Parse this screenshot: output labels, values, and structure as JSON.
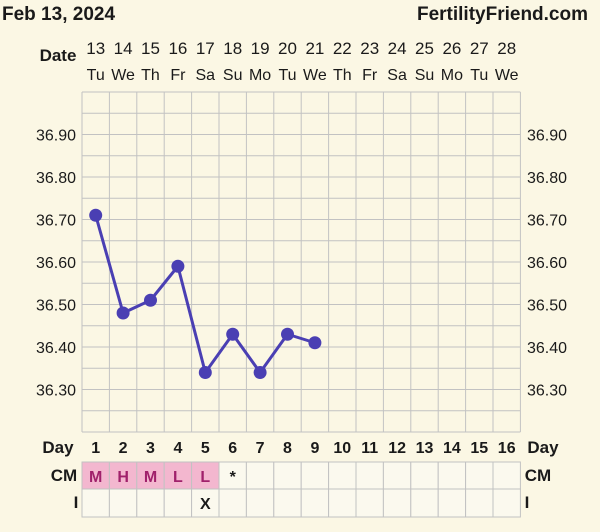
{
  "header": {
    "date": "Feb 13, 2024",
    "brand": "FertilityFriend.com"
  },
  "row_labels": {
    "date": "Date",
    "day": "Day",
    "cm": "CM",
    "intercourse": "I"
  },
  "colors": {
    "background": "#fbf7e4",
    "grid": "#c2c2c2",
    "line": "#4a3fb3",
    "cm_fill": "#f3b7cf",
    "cm_text": "#a0216b"
  },
  "chart_data": {
    "type": "line",
    "dates": [
      "13",
      "14",
      "15",
      "16",
      "17",
      "18",
      "19",
      "20",
      "21",
      "22",
      "23",
      "24",
      "25",
      "26",
      "27",
      "28"
    ],
    "weekdays": [
      "Tu",
      "We",
      "Th",
      "Fr",
      "Sa",
      "Su",
      "Mo",
      "Tu",
      "We",
      "Th",
      "Fr",
      "Sa",
      "Su",
      "Mo",
      "Tu",
      "We"
    ],
    "days": [
      "1",
      "2",
      "3",
      "4",
      "5",
      "6",
      "7",
      "8",
      "9",
      "10",
      "11",
      "12",
      "13",
      "14",
      "15",
      "16"
    ],
    "y_ticks": [
      "36.90",
      "36.80",
      "36.70",
      "36.60",
      "36.50",
      "36.40",
      "36.30"
    ],
    "ylim": [
      36.2,
      37.0
    ],
    "temperatures": [
      36.71,
      36.48,
      36.51,
      36.59,
      36.34,
      36.43,
      36.34,
      36.43,
      36.41
    ],
    "cm": [
      "M",
      "H",
      "M",
      "L",
      "L",
      "*",
      "",
      "",
      "",
      "",
      "",
      "",
      "",
      "",
      "",
      ""
    ],
    "intercourse": [
      "",
      "",
      "",
      "",
      "X",
      "",
      "",
      "",
      "",
      "",
      "",
      "",
      "",
      "",
      "",
      ""
    ]
  }
}
